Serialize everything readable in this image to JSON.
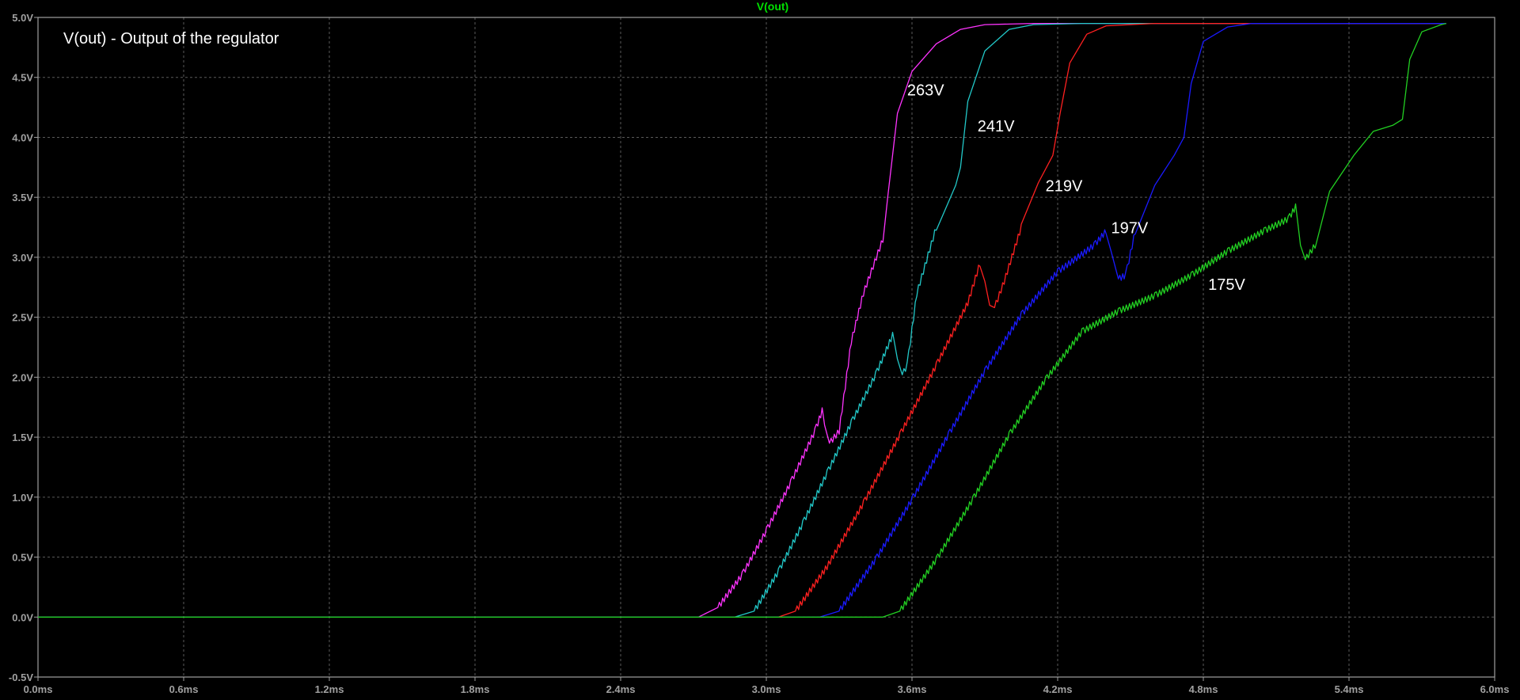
{
  "chart_data": {
    "type": "line",
    "trace_title": "V(out)",
    "annotation_title": "V(out) - Output of the regulator",
    "xlim": [
      0,
      6
    ],
    "ylim": [
      -0.5,
      5.0
    ],
    "x_ticks": [
      0,
      0.6,
      1.2,
      1.8,
      2.4,
      3.0,
      3.6,
      4.2,
      4.8,
      5.4,
      6.0
    ],
    "x_tick_labels": [
      "0.0ms",
      "0.6ms",
      "1.2ms",
      "1.8ms",
      "2.4ms",
      "3.0ms",
      "3.6ms",
      "4.2ms",
      "4.8ms",
      "5.4ms",
      "6.0ms"
    ],
    "y_ticks": [
      -0.5,
      0.0,
      0.5,
      1.0,
      1.5,
      2.0,
      2.5,
      3.0,
      3.5,
      4.0,
      4.5,
      5.0
    ],
    "y_tick_labels": [
      "-0.5V",
      "0.0V",
      "0.5V",
      "1.0V",
      "1.5V",
      "2.0V",
      "2.5V",
      "3.0V",
      "3.5V",
      "4.0V",
      "4.5V",
      "5.0V"
    ],
    "grid": true,
    "colors": {
      "background": "#000000",
      "axes": "#a0a0a0",
      "grid": "#5a5a5a",
      "tick_label": "#a0a0a0",
      "trace_title": "#00e000",
      "annotation": "#ffffff"
    },
    "series": [
      {
        "color": "#ff33ff",
        "label": "263V",
        "label_pos": [
          3.58,
          4.35
        ],
        "points": [
          [
            0,
            0
          ],
          [
            2.72,
            0
          ],
          [
            2.8,
            0.08
          ],
          [
            2.9,
            0.35
          ],
          [
            3.0,
            0.72
          ],
          [
            3.1,
            1.12
          ],
          [
            3.2,
            1.55
          ],
          [
            3.23,
            1.72
          ],
          [
            3.24,
            1.6
          ],
          [
            3.26,
            1.45
          ],
          [
            3.3,
            1.55
          ],
          [
            3.35,
            2.3
          ],
          [
            3.4,
            2.7
          ],
          [
            3.48,
            3.15
          ],
          [
            3.5,
            3.5
          ],
          [
            3.54,
            4.2
          ],
          [
            3.6,
            4.55
          ],
          [
            3.7,
            4.78
          ],
          [
            3.8,
            4.9
          ],
          [
            3.9,
            4.94
          ],
          [
            4.1,
            4.95
          ],
          [
            5.8,
            4.95
          ]
        ]
      },
      {
        "color": "#22c8c8",
        "label": "241V",
        "label_pos": [
          3.87,
          4.05
        ],
        "points": [
          [
            0,
            0
          ],
          [
            2.87,
            0
          ],
          [
            2.95,
            0.05
          ],
          [
            3.05,
            0.38
          ],
          [
            3.15,
            0.78
          ],
          [
            3.25,
            1.2
          ],
          [
            3.35,
            1.62
          ],
          [
            3.45,
            2.02
          ],
          [
            3.52,
            2.35
          ],
          [
            3.54,
            2.15
          ],
          [
            3.56,
            2.02
          ],
          [
            3.58,
            2.1
          ],
          [
            3.62,
            2.7
          ],
          [
            3.7,
            3.25
          ],
          [
            3.78,
            3.6
          ],
          [
            3.8,
            3.75
          ],
          [
            3.83,
            4.3
          ],
          [
            3.9,
            4.72
          ],
          [
            4.0,
            4.9
          ],
          [
            4.1,
            4.94
          ],
          [
            4.3,
            4.95
          ],
          [
            5.8,
            4.95
          ]
        ]
      },
      {
        "color": "#ff2020",
        "label": "219V",
        "label_pos": [
          4.15,
          3.55
        ],
        "points": [
          [
            0,
            0
          ],
          [
            3.05,
            0
          ],
          [
            3.12,
            0.05
          ],
          [
            3.25,
            0.42
          ],
          [
            3.4,
            0.95
          ],
          [
            3.55,
            1.52
          ],
          [
            3.7,
            2.1
          ],
          [
            3.83,
            2.62
          ],
          [
            3.88,
            2.95
          ],
          [
            3.9,
            2.8
          ],
          [
            3.92,
            2.6
          ],
          [
            3.94,
            2.58
          ],
          [
            3.98,
            2.8
          ],
          [
            4.05,
            3.25
          ],
          [
            4.12,
            3.62
          ],
          [
            4.18,
            3.85
          ],
          [
            4.21,
            4.2
          ],
          [
            4.25,
            4.62
          ],
          [
            4.32,
            4.86
          ],
          [
            4.4,
            4.93
          ],
          [
            4.6,
            4.95
          ],
          [
            5.8,
            4.95
          ]
        ]
      },
      {
        "color": "#1a1aff",
        "label": "197V",
        "label_pos": [
          4.42,
          3.2
        ],
        "points": [
          [
            0,
            0
          ],
          [
            3.22,
            0
          ],
          [
            3.3,
            0.05
          ],
          [
            3.45,
            0.48
          ],
          [
            3.6,
            0.98
          ],
          [
            3.75,
            1.52
          ],
          [
            3.9,
            2.05
          ],
          [
            4.05,
            2.52
          ],
          [
            4.2,
            2.88
          ],
          [
            4.35,
            3.1
          ],
          [
            4.4,
            3.22
          ],
          [
            4.42,
            3.05
          ],
          [
            4.45,
            2.82
          ],
          [
            4.48,
            2.85
          ],
          [
            4.52,
            3.22
          ],
          [
            4.6,
            3.6
          ],
          [
            4.68,
            3.85
          ],
          [
            4.72,
            4.0
          ],
          [
            4.75,
            4.45
          ],
          [
            4.8,
            4.8
          ],
          [
            4.9,
            4.92
          ],
          [
            5.0,
            4.95
          ],
          [
            5.8,
            4.95
          ]
        ]
      },
      {
        "color": "#22d022",
        "label": "175V",
        "label_pos": [
          4.82,
          2.73
        ],
        "points": [
          [
            0,
            0
          ],
          [
            3.48,
            0
          ],
          [
            3.55,
            0.05
          ],
          [
            3.7,
            0.48
          ],
          [
            3.85,
            0.98
          ],
          [
            4.0,
            1.52
          ],
          [
            4.15,
            1.98
          ],
          [
            4.3,
            2.38
          ],
          [
            4.45,
            2.55
          ],
          [
            4.6,
            2.68
          ],
          [
            4.75,
            2.85
          ],
          [
            4.9,
            3.05
          ],
          [
            5.05,
            3.22
          ],
          [
            5.15,
            3.32
          ],
          [
            5.18,
            3.42
          ],
          [
            5.2,
            3.1
          ],
          [
            5.22,
            2.98
          ],
          [
            5.26,
            3.1
          ],
          [
            5.32,
            3.55
          ],
          [
            5.42,
            3.85
          ],
          [
            5.5,
            4.05
          ],
          [
            5.58,
            4.1
          ],
          [
            5.62,
            4.15
          ],
          [
            5.65,
            4.65
          ],
          [
            5.7,
            4.88
          ],
          [
            5.78,
            4.94
          ],
          [
            5.8,
            4.95
          ]
        ]
      }
    ]
  }
}
